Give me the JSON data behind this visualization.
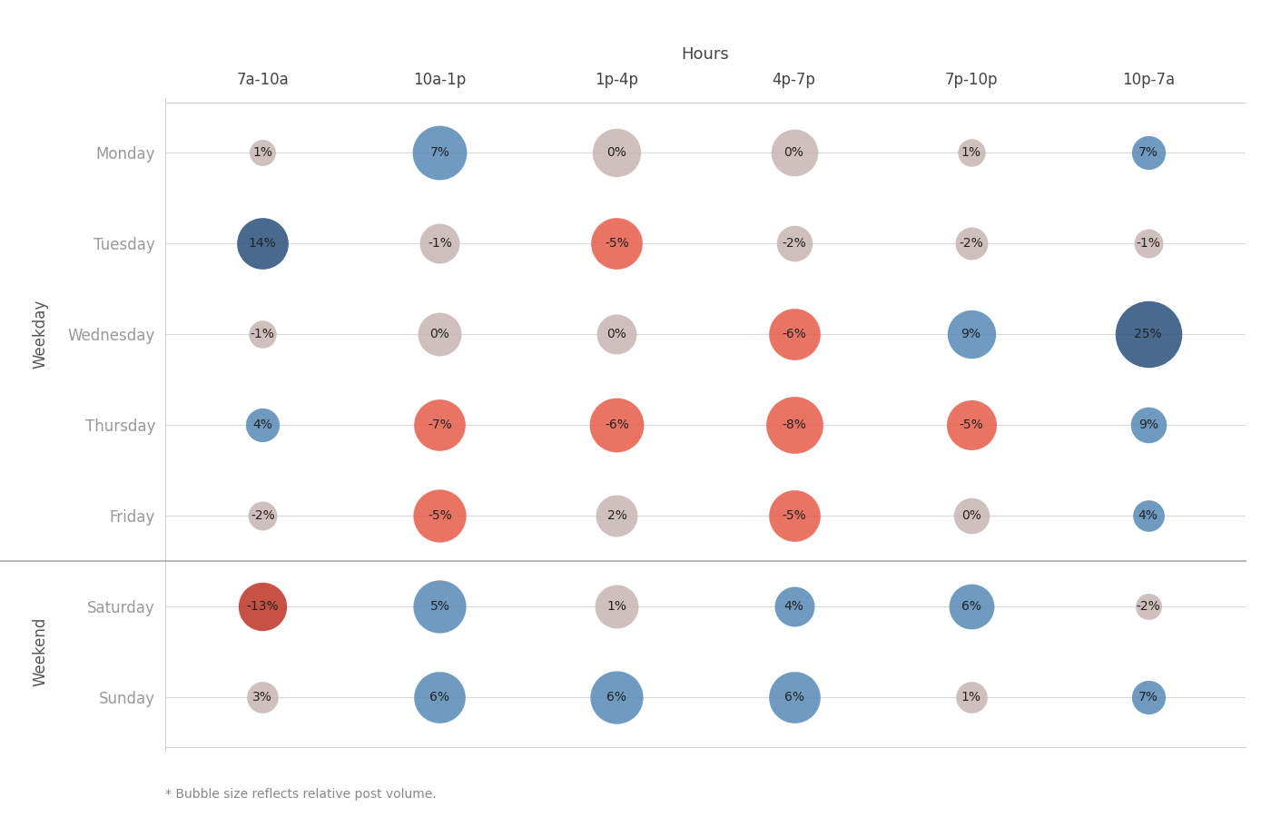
{
  "hours": [
    "7a-10a",
    "10a-1p",
    "1p-4p",
    "4p-7p",
    "7p-10p",
    "10p-7a"
  ],
  "days": [
    "Monday",
    "Tuesday",
    "Wednesday",
    "Thursday",
    "Friday",
    "Saturday",
    "Sunday"
  ],
  "values": [
    [
      1,
      7,
      0,
      0,
      1,
      7
    ],
    [
      14,
      -1,
      -5,
      -2,
      -2,
      -1
    ],
    [
      -1,
      0,
      0,
      -6,
      9,
      25
    ],
    [
      4,
      -7,
      -6,
      -8,
      -5,
      9
    ],
    [
      -2,
      -5,
      2,
      -5,
      0,
      4
    ],
    [
      -13,
      5,
      1,
      4,
      6,
      -2
    ],
    [
      3,
      6,
      6,
      6,
      1,
      7
    ]
  ],
  "bubble_sizes": [
    [
      300,
      1800,
      1400,
      1300,
      350,
      600
    ],
    [
      1600,
      900,
      1600,
      700,
      550,
      400
    ],
    [
      350,
      1100,
      900,
      1600,
      1400,
      2800
    ],
    [
      600,
      1600,
      1800,
      2000,
      1500,
      700
    ],
    [
      400,
      1700,
      1000,
      1600,
      700,
      500
    ],
    [
      1400,
      1700,
      1100,
      900,
      1200,
      300
    ],
    [
      500,
      1600,
      1700,
      1600,
      500,
      600
    ]
  ],
  "color_rules": [
    [
      "neutral",
      "blue",
      "neutral",
      "neutral",
      "neutral",
      "blue"
    ],
    [
      "dark_blue",
      "neutral",
      "red",
      "neutral",
      "neutral",
      "neutral"
    ],
    [
      "neutral",
      "neutral",
      "neutral",
      "red",
      "blue",
      "dark_blue"
    ],
    [
      "blue",
      "red",
      "red",
      "red",
      "red",
      "blue"
    ],
    [
      "neutral",
      "red",
      "neutral",
      "red",
      "neutral",
      "blue"
    ],
    [
      "dark_red",
      "blue",
      "neutral",
      "blue",
      "blue",
      "neutral"
    ],
    [
      "neutral",
      "blue",
      "blue",
      "blue",
      "neutral",
      "blue"
    ]
  ],
  "background_color": "#ffffff",
  "grid_color": "#d0d0d0",
  "separator_color": "#aaaaaa",
  "weekday_label": "Weekday",
  "weekend_label": "Weekend",
  "hours_label": "Hours",
  "footnote": "* Bubble size reflects relative post volume.",
  "blue_color": "#5b8db8",
  "dark_blue_color": "#2e5580",
  "red_color": "#e8614f",
  "dark_red_color": "#c0392b",
  "neutral_color": "#c9b8b5",
  "day_label_color": "#999999",
  "header_color": "#444444",
  "section_label_color": "#555555",
  "footnote_color": "#888888",
  "bubble_alpha": 0.88
}
